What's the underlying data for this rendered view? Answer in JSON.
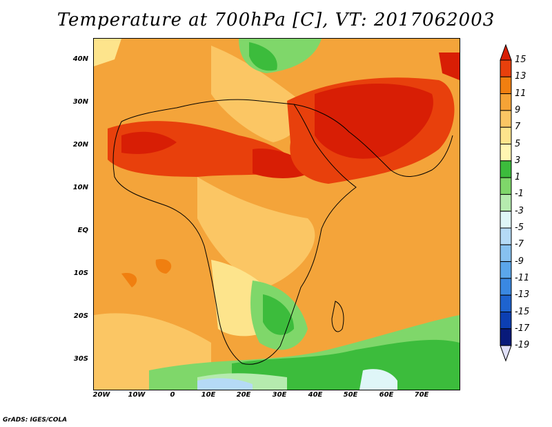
{
  "title": "Temperature at 700hPa [C], VT: 2017062003",
  "footer": "GrADS: IGES/COLA",
  "lat_ticks": [
    "40N",
    "30N",
    "20N",
    "10N",
    "EQ",
    "10S",
    "20S",
    "30S"
  ],
  "lon_ticks": [
    "20W",
    "10W",
    "0",
    "10E",
    "20E",
    "30E",
    "40E",
    "50E",
    "60E",
    "70E"
  ],
  "colorbar": {
    "labels": [
      "15",
      "13",
      "11",
      "9",
      "7",
      "5",
      "3",
      "1",
      "-1",
      "-3",
      "-5",
      "-7",
      "-9",
      "-11",
      "-13",
      "-15",
      "-17",
      "-19"
    ],
    "colors": [
      "#d81e05",
      "#e8400c",
      "#f07f10",
      "#f5a336",
      "#fbc664",
      "#fde48c",
      "#fff6b2",
      "#3cbc3c",
      "#7fd76a",
      "#b5ebae",
      "#dff6f8",
      "#b5daf6",
      "#87c1f0",
      "#5ba6ea",
      "#3a88e2",
      "#1e63cf",
      "#0c3fb2",
      "#081a7a",
      "#e0e0f8"
    ]
  }
}
